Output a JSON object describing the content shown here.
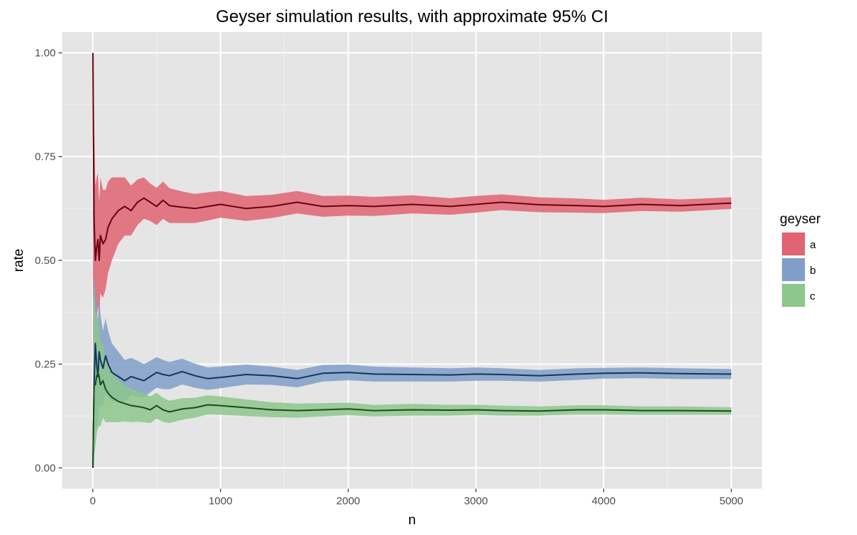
{
  "chart_data": {
    "type": "line",
    "title": "Geyser simulation results, with approximate 95% CI",
    "xlabel": "n",
    "ylabel": "rate",
    "xlim": [
      -240,
      5240
    ],
    "ylim": [
      -0.05,
      1.05
    ],
    "x_ticks": [
      0,
      1000,
      2000,
      3000,
      4000,
      5000
    ],
    "x_tick_labels": [
      "0",
      "1000",
      "2000",
      "3000",
      "4000",
      "5000"
    ],
    "y_ticks": [
      0,
      0.25,
      0.5,
      0.75,
      1.0
    ],
    "y_tick_labels": [
      "0.00",
      "0.25",
      "0.50",
      "0.75",
      "1.00"
    ],
    "grid": true,
    "legend": {
      "title": "geyser",
      "position": "right",
      "entries": [
        "a",
        "b",
        "c"
      ]
    },
    "series": [
      {
        "name": "a",
        "fill_color": "#e06472",
        "line_color": "#6b0010",
        "x": [
          1,
          5,
          10,
          20,
          30,
          40,
          50,
          60,
          80,
          100,
          120,
          150,
          200,
          250,
          300,
          350,
          400,
          450,
          500,
          550,
          600,
          700,
          800,
          900,
          1000,
          1200,
          1400,
          1600,
          1800,
          2000,
          2200,
          2500,
          2800,
          3000,
          3200,
          3500,
          3800,
          4000,
          4300,
          4600,
          5000
        ],
        "y": [
          1.0,
          0.8,
          0.6,
          0.5,
          0.53,
          0.55,
          0.5,
          0.56,
          0.54,
          0.55,
          0.58,
          0.6,
          0.62,
          0.63,
          0.62,
          0.64,
          0.65,
          0.64,
          0.63,
          0.645,
          0.632,
          0.628,
          0.625,
          0.63,
          0.635,
          0.625,
          0.63,
          0.64,
          0.63,
          0.632,
          0.63,
          0.635,
          0.63,
          0.635,
          0.64,
          0.634,
          0.632,
          0.63,
          0.635,
          0.632,
          0.638
        ],
        "lower": [
          0.2,
          0.42,
          0.35,
          0.33,
          0.36,
          0.39,
          0.36,
          0.42,
          0.41,
          0.43,
          0.47,
          0.5,
          0.54,
          0.56,
          0.56,
          0.585,
          0.6,
          0.595,
          0.585,
          0.6,
          0.59,
          0.59,
          0.59,
          0.596,
          0.603,
          0.595,
          0.602,
          0.613,
          0.605,
          0.608,
          0.607,
          0.613,
          0.61,
          0.615,
          0.621,
          0.616,
          0.615,
          0.614,
          0.619,
          0.617,
          0.624
        ],
        "upper": [
          1.0,
          1.0,
          0.85,
          0.68,
          0.7,
          0.71,
          0.64,
          0.7,
          0.67,
          0.67,
          0.69,
          0.7,
          0.7,
          0.7,
          0.68,
          0.695,
          0.7,
          0.685,
          0.675,
          0.69,
          0.674,
          0.666,
          0.66,
          0.664,
          0.667,
          0.655,
          0.658,
          0.667,
          0.655,
          0.656,
          0.653,
          0.657,
          0.65,
          0.655,
          0.659,
          0.652,
          0.649,
          0.646,
          0.651,
          0.647,
          0.652
        ]
      },
      {
        "name": "b",
        "fill_color": "#7f9fc8",
        "line_color": "#12355e",
        "x": [
          1,
          5,
          10,
          20,
          30,
          40,
          50,
          60,
          80,
          100,
          120,
          150,
          200,
          250,
          300,
          350,
          400,
          450,
          500,
          550,
          600,
          700,
          800,
          900,
          1000,
          1200,
          1400,
          1600,
          1800,
          2000,
          2200,
          2500,
          2800,
          3000,
          3200,
          3500,
          3800,
          4000,
          4300,
          4600,
          5000
        ],
        "y": [
          0.0,
          0.1,
          0.2,
          0.3,
          0.25,
          0.22,
          0.28,
          0.26,
          0.24,
          0.27,
          0.25,
          0.23,
          0.22,
          0.21,
          0.22,
          0.215,
          0.21,
          0.22,
          0.23,
          0.225,
          0.222,
          0.232,
          0.222,
          0.215,
          0.218,
          0.225,
          0.222,
          0.215,
          0.228,
          0.23,
          0.226,
          0.225,
          0.224,
          0.226,
          0.225,
          0.222,
          0.226,
          0.228,
          0.229,
          0.227,
          0.226
        ],
        "lower": [
          0.0,
          0.0,
          0.03,
          0.1,
          0.1,
          0.09,
          0.15,
          0.15,
          0.15,
          0.18,
          0.17,
          0.16,
          0.16,
          0.16,
          0.175,
          0.172,
          0.17,
          0.182,
          0.193,
          0.19,
          0.189,
          0.201,
          0.193,
          0.188,
          0.192,
          0.201,
          0.2,
          0.194,
          0.208,
          0.211,
          0.208,
          0.208,
          0.208,
          0.21,
          0.21,
          0.208,
          0.212,
          0.215,
          0.216,
          0.214,
          0.214
        ],
        "upper": [
          0.0,
          0.35,
          0.45,
          0.45,
          0.4,
          0.35,
          0.41,
          0.37,
          0.33,
          0.36,
          0.33,
          0.3,
          0.28,
          0.26,
          0.265,
          0.258,
          0.25,
          0.258,
          0.267,
          0.26,
          0.255,
          0.263,
          0.251,
          0.242,
          0.244,
          0.249,
          0.244,
          0.236,
          0.248,
          0.249,
          0.244,
          0.242,
          0.24,
          0.242,
          0.24,
          0.236,
          0.24,
          0.241,
          0.242,
          0.24,
          0.238
        ]
      },
      {
        "name": "c",
        "fill_color": "#8dc78c",
        "line_color": "#1a4d1c",
        "x": [
          1,
          5,
          10,
          20,
          30,
          40,
          50,
          60,
          80,
          100,
          120,
          150,
          200,
          250,
          300,
          350,
          400,
          450,
          500,
          550,
          600,
          700,
          800,
          900,
          1000,
          1200,
          1400,
          1600,
          1800,
          2000,
          2200,
          2500,
          2800,
          3000,
          3200,
          3500,
          3800,
          4000,
          4300,
          4600,
          5000
        ],
        "y": [
          0.0,
          0.1,
          0.2,
          0.2,
          0.22,
          0.23,
          0.22,
          0.2,
          0.21,
          0.19,
          0.18,
          0.17,
          0.16,
          0.155,
          0.15,
          0.148,
          0.145,
          0.14,
          0.15,
          0.14,
          0.135,
          0.142,
          0.145,
          0.152,
          0.15,
          0.145,
          0.14,
          0.138,
          0.14,
          0.142,
          0.138,
          0.14,
          0.139,
          0.14,
          0.138,
          0.137,
          0.14,
          0.14,
          0.138,
          0.138,
          0.137
        ],
        "lower": [
          0.0,
          0.0,
          0.03,
          0.05,
          0.08,
          0.1,
          0.1,
          0.1,
          0.12,
          0.11,
          0.11,
          0.11,
          0.11,
          0.112,
          0.11,
          0.111,
          0.11,
          0.108,
          0.119,
          0.111,
          0.108,
          0.116,
          0.121,
          0.129,
          0.128,
          0.125,
          0.122,
          0.121,
          0.124,
          0.127,
          0.124,
          0.126,
          0.126,
          0.128,
          0.126,
          0.126,
          0.129,
          0.129,
          0.128,
          0.128,
          0.128
        ],
        "upper": [
          0.0,
          0.35,
          0.45,
          0.38,
          0.37,
          0.36,
          0.34,
          0.3,
          0.3,
          0.27,
          0.25,
          0.23,
          0.21,
          0.198,
          0.19,
          0.185,
          0.18,
          0.172,
          0.181,
          0.169,
          0.162,
          0.168,
          0.169,
          0.175,
          0.172,
          0.165,
          0.158,
          0.155,
          0.156,
          0.157,
          0.152,
          0.154,
          0.152,
          0.152,
          0.15,
          0.148,
          0.151,
          0.151,
          0.148,
          0.148,
          0.146
        ]
      }
    ]
  }
}
